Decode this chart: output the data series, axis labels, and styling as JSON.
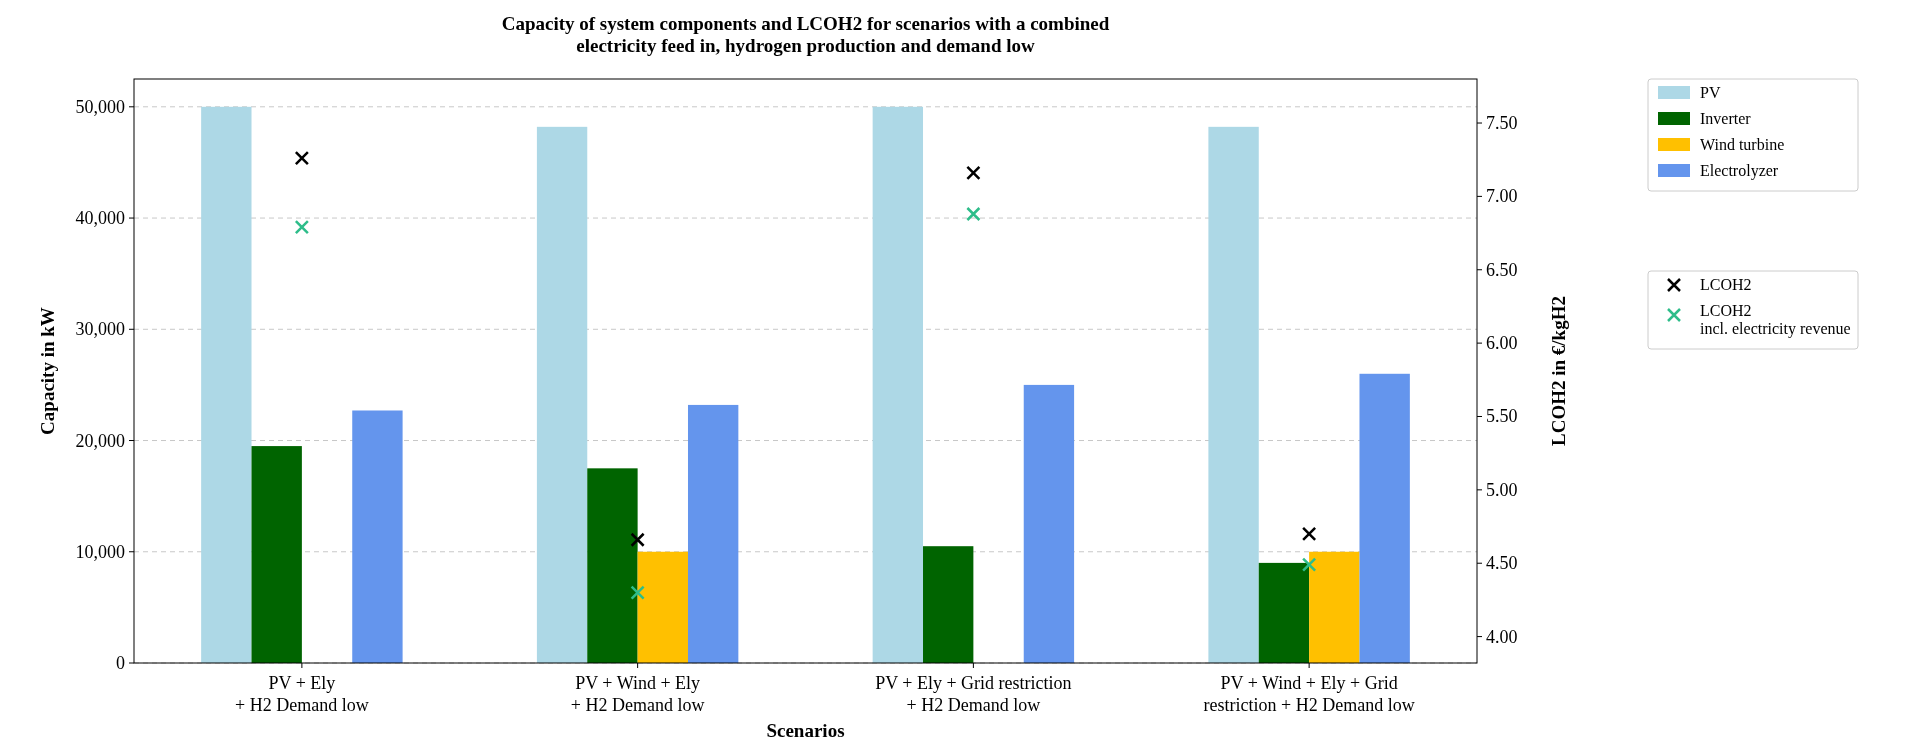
{
  "chart_data": {
    "type": "bar",
    "title": "Capacity of system components and LCOH2 for scenarios with a combined\nelectricity feed in, hydrogen production and demand low",
    "xlabel": "Scenarios",
    "ylabel": "Capacity in kW",
    "y2label": "LCOH2 in €/kgH2",
    "categories": [
      "PV + Ely\n+ H2 Demand low",
      "PV + Wind + Ely\n+ H2 Demand low",
      "PV + Ely + Grid restriction\n+ H2 Demand low",
      "PV + Wind + Ely + Grid\nrestriction + H2 Demand low"
    ],
    "series": [
      {
        "name": "PV",
        "color": "#add8e6",
        "values": [
          50000,
          48200,
          50000,
          48200
        ]
      },
      {
        "name": "Inverter",
        "color": "#006400",
        "values": [
          19500,
          17500,
          10500,
          9000
        ]
      },
      {
        "name": "Wind turbine",
        "color": "#ffc000",
        "values": [
          0,
          10000,
          0,
          10000
        ]
      },
      {
        "name": "Electrolyzer",
        "color": "#6495ed",
        "values": [
          22700,
          23200,
          25000,
          26000
        ]
      },
      {
        "name": "LCOH2",
        "type": "scatter",
        "axis": "y2",
        "marker": "cross",
        "color": "#000000",
        "values": [
          7.26,
          4.66,
          7.16,
          4.7
        ]
      },
      {
        "name": "LCOH2\nincl. electricity revenue",
        "type": "scatter",
        "axis": "y2",
        "marker": "cross",
        "color": "#2ebd8a",
        "values": [
          6.79,
          4.3,
          6.88,
          4.49
        ]
      }
    ],
    "ylim": [
      0,
      52500
    ],
    "yticks": [
      {
        "value": 0,
        "label": "0"
      },
      {
        "value": 10000,
        "label": "10,000"
      },
      {
        "value": 20000,
        "label": "20,000"
      },
      {
        "value": 30000,
        "label": "30,000"
      },
      {
        "value": 40000,
        "label": "40,000"
      },
      {
        "value": 50000,
        "label": "50,000"
      }
    ],
    "y2lim": [
      3.82,
      7.8
    ],
    "y2ticks": [
      {
        "value": 4,
        "label": "4.00"
      },
      {
        "value": 4.5,
        "label": "4.50"
      },
      {
        "value": 5,
        "label": "5.00"
      },
      {
        "value": 5.5,
        "label": "5.50"
      },
      {
        "value": 6,
        "label": "6.00"
      },
      {
        "value": 6.5,
        "label": "6.50"
      },
      {
        "value": 7,
        "label": "7.00"
      },
      {
        "value": 7.5,
        "label": "7.50"
      }
    ],
    "grid": "y",
    "line_style": "dashed",
    "legend": "right"
  }
}
